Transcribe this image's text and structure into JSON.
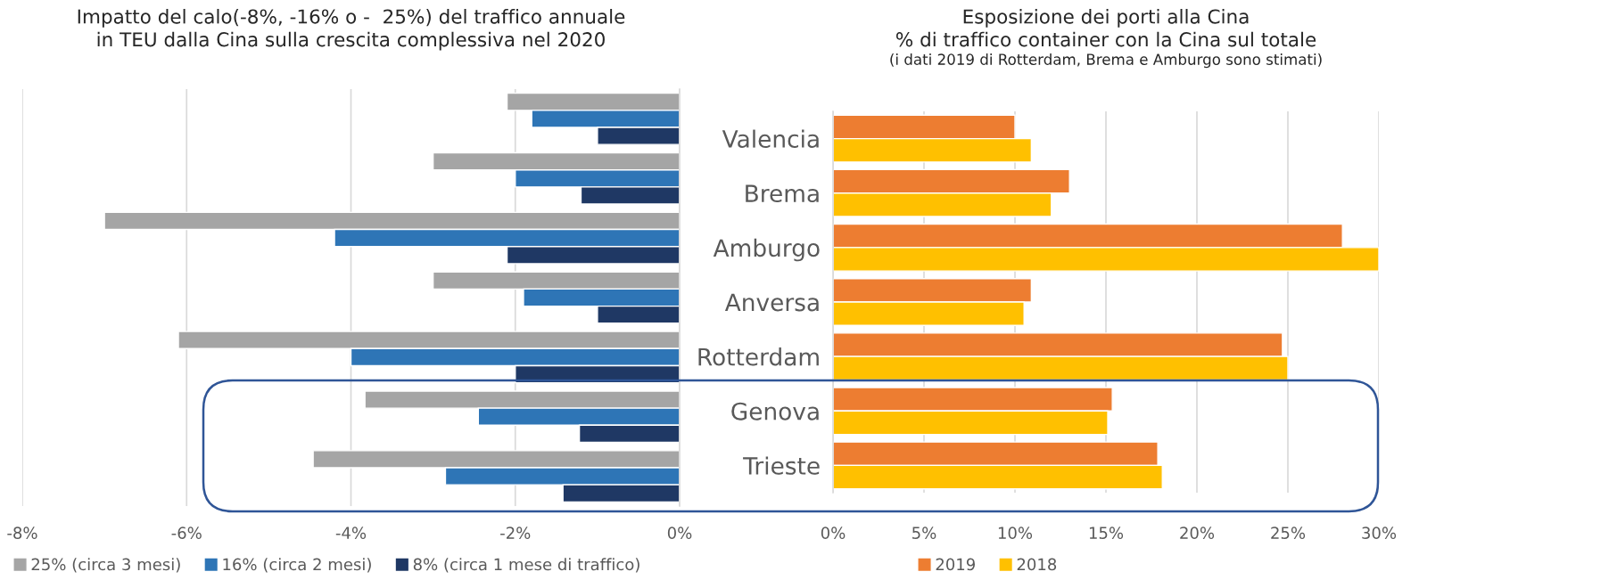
{
  "chart_data": [
    {
      "type": "bar",
      "orientation": "horizontal",
      "title": "Impatto del calo(-8%, -16% o -  25%) del traffico annuale\nin TEU dalla Cina sulla crescita complessiva nel 2020",
      "categories": [
        null,
        null,
        null,
        null,
        null,
        null,
        null
      ],
      "series": [
        {
          "name": "25% (circa 3 mesi)",
          "color": "#a5a5a5",
          "values": [
            -2.1,
            -3.0,
            -7.0,
            -3.0,
            -6.1,
            -3.83,
            -4.46
          ]
        },
        {
          "name": "16% (circa 2 mesi)",
          "color": "#2e75b6",
          "values": [
            -1.8,
            -2.0,
            -4.2,
            -1.9,
            -4.0,
            -2.45,
            -2.85
          ]
        },
        {
          "name": "8% (circa 1 mese di traffico)",
          "color": "#1f3864",
          "values": [
            -1.0,
            -1.2,
            -2.1,
            -1.0,
            -2.0,
            -1.22,
            -1.42
          ]
        }
      ],
      "xlim": [
        -8,
        0
      ],
      "xticks": [
        {
          "value": -8,
          "label": "-8%"
        },
        {
          "value": -6,
          "label": "-6%"
        },
        {
          "value": -4,
          "label": "-4%"
        },
        {
          "value": -2,
          "label": "-2%"
        },
        {
          "value": 0,
          "label": "0%"
        }
      ],
      "grid": "x",
      "legend": "bottom",
      "tick_labels": "x"
    },
    {
      "type": "bar",
      "orientation": "horizontal",
      "title": "Esposizione dei porti alla Cina\n% di traffico container con la Cina sul totale",
      "subtitle": "(i dati 2019 di Rotterdam, Brema e Amburgo sono stimati)",
      "categories": [
        "Valencia",
        "Brema",
        "Amburgo",
        "Anversa",
        "Rotterdam",
        "Genova",
        "Trieste"
      ],
      "series": [
        {
          "name": "2019",
          "color": "#ed7d31",
          "values": [
            10.0,
            13.0,
            28.0,
            10.9,
            24.7,
            15.35,
            17.85
          ]
        },
        {
          "name": "2018",
          "color": "#ffc000",
          "values": [
            10.9,
            12.0,
            30.0,
            10.5,
            25.0,
            15.1,
            18.1
          ]
        }
      ],
      "xlim": [
        0,
        30
      ],
      "xticks": [
        {
          "value": 0,
          "label": "0%"
        },
        {
          "value": 5,
          "label": "5%"
        },
        {
          "value": 10,
          "label": "10%"
        },
        {
          "value": 15,
          "label": "15%"
        },
        {
          "value": 20,
          "label": "20%"
        },
        {
          "value": 25,
          "label": "25%"
        },
        {
          "value": 30,
          "label": "30%"
        }
      ],
      "grid": "x",
      "legend": "bottom"
    }
  ]
}
